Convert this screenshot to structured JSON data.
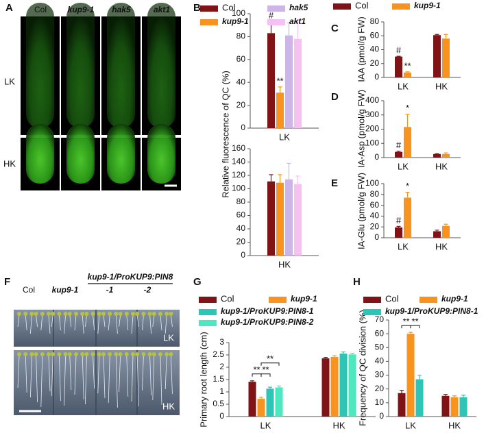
{
  "panel_a": {
    "letter": "A",
    "columns": [
      "Col",
      "kup9-1",
      "hak5",
      "akt1"
    ],
    "rows": [
      "LK",
      "HK"
    ]
  },
  "panel_f": {
    "letter": "F",
    "header": "kup9-1/ProKUP9:PIN8",
    "columns": [
      "Col",
      "kup9-1",
      "-1",
      "-2"
    ],
    "rows": [
      "LK",
      "HK"
    ]
  },
  "chart_data": [
    {
      "type": "bar",
      "letter": "B",
      "ylabel": "Relative fluorescence of QC (%)",
      "categories": [
        "LK",
        "HK"
      ],
      "series": [
        {
          "name": "Col",
          "color": "#7f1315",
          "values": [
            83,
            111
          ],
          "errors": [
            10,
            10
          ]
        },
        {
          "name": "kup9-1",
          "color": "#f7931e",
          "values": [
            31,
            109
          ],
          "errors": [
            5,
            12
          ]
        },
        {
          "name": "hak5",
          "color": "#cdb5e8",
          "values": [
            81,
            114
          ],
          "errors": [
            11,
            24
          ]
        },
        {
          "name": "akt1",
          "color": "#f6c1f2",
          "values": [
            78,
            107
          ],
          "errors": [
            16,
            12
          ]
        }
      ],
      "axes": [
        {
          "ylim": [
            0,
            100
          ],
          "yticks": [
            0,
            20,
            40,
            60,
            80,
            100
          ]
        },
        {
          "ylim": [
            0,
            160
          ],
          "yticks": [
            0,
            20,
            40,
            60,
            80,
            100,
            120,
            140,
            160
          ]
        }
      ],
      "annotations": [
        {
          "text": "#",
          "series": 0,
          "category": 0
        },
        {
          "text": "**",
          "series": 1,
          "category": 0
        }
      ]
    },
    {
      "type": "bar",
      "letter": "C",
      "ylabel": "IAA (pmol/g FW)",
      "categories": [
        "LK",
        "HK"
      ],
      "series": [
        {
          "name": "Col",
          "color": "#7f1315",
          "values": [
            30,
            61
          ],
          "errors": [
            0.5,
            1
          ]
        },
        {
          "name": "kup9-1",
          "color": "#f7931e",
          "values": [
            7,
            56
          ],
          "errors": [
            1,
            6
          ]
        }
      ],
      "ylim": [
        0,
        80
      ],
      "yticks": [
        0,
        20,
        40,
        60,
        80
      ],
      "annotations": [
        {
          "text": "#",
          "series": 0,
          "category": 0
        },
        {
          "text": "**",
          "series": 1,
          "category": 0
        }
      ]
    },
    {
      "type": "bar",
      "letter": "D",
      "ylabel": "IA-Asp (pmol/g FW)",
      "categories": [
        "LK",
        "HK"
      ],
      "series": [
        {
          "color": "#7f1315",
          "values": [
            40,
            25
          ],
          "errors": [
            5,
            3
          ]
        },
        {
          "color": "#f7931e",
          "values": [
            215,
            25
          ],
          "errors": [
            90,
            8
          ]
        }
      ],
      "ylim": [
        0,
        400
      ],
      "yticks": [
        0,
        100,
        200,
        300,
        400
      ],
      "annotations": [
        {
          "text": "#",
          "series": 0,
          "category": 0
        },
        {
          "text": "*",
          "series": 1,
          "category": 0
        }
      ]
    },
    {
      "type": "bar",
      "letter": "E",
      "ylabel": "IA-Glu (pmol/g FW)",
      "categories": [
        "LK",
        "HK"
      ],
      "series": [
        {
          "color": "#7f1315",
          "values": [
            19,
            12
          ],
          "errors": [
            2,
            2
          ]
        },
        {
          "color": "#f7931e",
          "values": [
            74,
            22
          ],
          "errors": [
            10,
            3
          ]
        }
      ],
      "ylim": [
        0,
        100
      ],
      "yticks": [
        0,
        20,
        40,
        60,
        80,
        100
      ],
      "annotations": [
        {
          "text": "#",
          "series": 0,
          "category": 0
        },
        {
          "text": "*",
          "series": 1,
          "category": 0
        }
      ]
    },
    {
      "type": "bar",
      "letter": "G",
      "ylabel": "Primary root length (cm)",
      "categories": [
        "LK",
        "HK"
      ],
      "series": [
        {
          "name": "Col",
          "color": "#7f1315",
          "values": [
            1.41,
            2.36
          ],
          "errors": [
            0.04,
            0.04
          ]
        },
        {
          "name": "kup9-1",
          "color": "#f7931e",
          "values": [
            0.72,
            2.42
          ],
          "errors": [
            0.06,
            0.05
          ]
        },
        {
          "name": "kup9-1/ProKUP9:PIN8-1",
          "color": "#2ec4b6",
          "values": [
            1.13,
            2.55
          ],
          "errors": [
            0.06,
            0.07
          ]
        },
        {
          "name": "kup9-1/ProKUP9:PIN8-2",
          "color": "#4de8c0",
          "values": [
            1.18,
            2.52
          ],
          "errors": [
            0.06,
            0.05
          ]
        }
      ],
      "ylim": [
        0,
        3
      ],
      "yticks": [
        0,
        0.5,
        1,
        1.5,
        2,
        2.5,
        3
      ],
      "brackets": [
        {
          "text": "**",
          "from": 0,
          "to": 1,
          "category": 0
        },
        {
          "text": "**",
          "from": 1,
          "to": 2,
          "category": 0
        },
        {
          "text": "**",
          "from": 1,
          "to": 3,
          "category": 0
        }
      ]
    },
    {
      "type": "bar",
      "letter": "H",
      "ylabel": "Frequency of QC division (%)",
      "categories": [
        "LK",
        "HK"
      ],
      "series": [
        {
          "name": "Col",
          "color": "#7f1315",
          "values": [
            17,
            15
          ],
          "errors": [
            2,
            1
          ]
        },
        {
          "name": "kup9-1",
          "color": "#f7931e",
          "values": [
            60,
            14
          ],
          "errors": [
            1,
            1
          ]
        },
        {
          "name": "kup9-1/ProKUP9:PIN8-1",
          "color": "#2ec4b6",
          "values": [
            27,
            14
          ],
          "errors": [
            3,
            1.5
          ]
        }
      ],
      "ylim": [
        0,
        70
      ],
      "yticks": [
        0,
        10,
        20,
        30,
        40,
        50,
        60,
        70
      ],
      "brackets": [
        {
          "text": "**",
          "from": 0,
          "to": 1,
          "category": 0
        },
        {
          "text": "**",
          "from": 1,
          "to": 2,
          "category": 0
        }
      ]
    }
  ]
}
